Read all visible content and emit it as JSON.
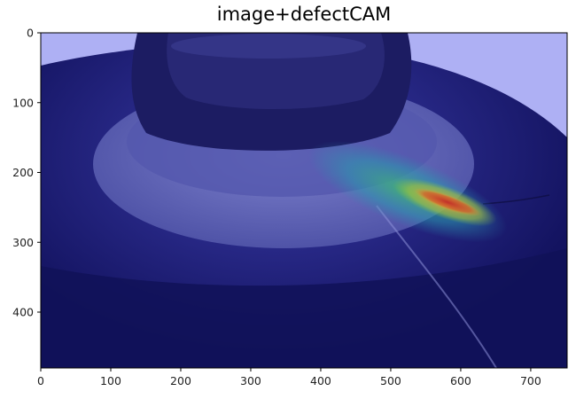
{
  "figure": {
    "title": "image+defectCAM"
  },
  "chart_data": {
    "type": "heatmap",
    "title": "image+defectCAM",
    "xlabel": "",
    "ylabel": "",
    "xlim": [
      0,
      752
    ],
    "ylim": [
      480,
      0
    ],
    "x_ticks": [
      "0",
      "100",
      "200",
      "300",
      "400",
      "500",
      "600",
      "700"
    ],
    "y_ticks": [
      "0",
      "100",
      "200",
      "300",
      "400"
    ],
    "grid": false,
    "overlay_colormap": "jet",
    "background_tint": "#1e1e78",
    "hotspot": {
      "center": [
        510,
        232
      ],
      "peak_color": "#c0302a"
    }
  },
  "colors": {
    "hot": "#d4331f",
    "warm": "#e8a232",
    "mid": "#3fb86f",
    "cool": "#2a8fae",
    "base": "#1a1a6e",
    "light": "#aeb0f4"
  }
}
